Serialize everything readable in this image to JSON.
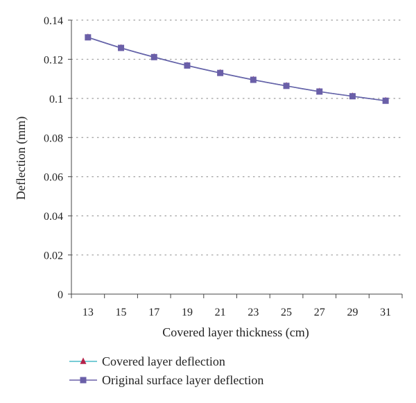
{
  "chart_data": {
    "type": "line",
    "title": "",
    "xlabel": "Covered layer thickness (cm)",
    "ylabel": "Deflection (mm)",
    "x": [
      13,
      15,
      17,
      19,
      21,
      23,
      25,
      27,
      29,
      31
    ],
    "ylim": [
      0,
      0.14
    ],
    "yticks": [
      "0",
      "0.02",
      "0.04",
      "0.06",
      "0.08",
      "0.1",
      "0.12",
      "0.14"
    ],
    "grid": "horizontal dotted",
    "legend_position": "bottom",
    "series": [
      {
        "name": "Covered layer deflection",
        "marker": "triangle",
        "line_color": "#4bbbc8",
        "marker_color": "#b5234a",
        "values": [
          0.1312,
          0.1258,
          0.1211,
          0.1168,
          0.113,
          0.1095,
          0.1064,
          0.1035,
          0.1011,
          0.0988
        ]
      },
      {
        "name": "Original surface layer deflection",
        "marker": "square",
        "line_color": "#6a5fa8",
        "marker_color": "#6a5fa8",
        "values": [
          0.1312,
          0.1258,
          0.1211,
          0.1168,
          0.113,
          0.1095,
          0.1064,
          0.1035,
          0.1011,
          0.0988
        ]
      }
    ]
  }
}
